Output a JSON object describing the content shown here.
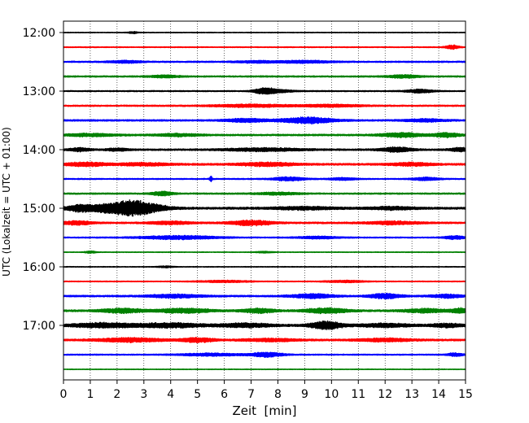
{
  "chart_data": {
    "type": "line",
    "title": "",
    "xlabel": "Zeit  [min]",
    "ylabel": "UTC (Lokalzeit = UTC + 01:00)",
    "xlim": [
      0,
      15
    ],
    "x_ticks": [
      0,
      1,
      2,
      3,
      4,
      5,
      6,
      7,
      8,
      9,
      10,
      11,
      12,
      13,
      14,
      15
    ],
    "vertical_grid": "dotted, each minute",
    "y_ticks": [
      {
        "label": "12:00",
        "trace_index": 0
      },
      {
        "label": "13:00",
        "trace_index": 4
      },
      {
        "label": "14:00",
        "trace_index": 8
      },
      {
        "label": "15:00",
        "trace_index": 12
      },
      {
        "label": "16:00",
        "trace_index": 16
      },
      {
        "label": "17:00",
        "trace_index": 20
      }
    ],
    "trace_interval_minutes": 15,
    "colors": [
      "#000000",
      "#ff0000",
      "#0000ff",
      "#008000"
    ],
    "traces": [
      {
        "start": "12:00",
        "color": "#000000",
        "noise": 0.3,
        "events": [
          {
            "t": 2.6,
            "amp": 1.2,
            "dur": 0.2
          }
        ]
      },
      {
        "start": "12:15",
        "color": "#ff0000",
        "noise": 0.4,
        "events": [
          {
            "t": 14.5,
            "amp": 2.6,
            "dur": 0.25
          }
        ]
      },
      {
        "start": "12:30",
        "color": "#0000ff",
        "noise": 0.6,
        "events": [
          {
            "t": 2.3,
            "amp": 1.4,
            "dur": 0.6
          },
          {
            "t": 7.2,
            "amp": 1.2,
            "dur": 0.8
          },
          {
            "t": 9.0,
            "amp": 1.4,
            "dur": 1.0
          }
        ]
      },
      {
        "start": "12:45",
        "color": "#008000",
        "noise": 0.6,
        "events": [
          {
            "t": 3.8,
            "amp": 1.4,
            "dur": 0.6
          },
          {
            "t": 12.7,
            "amp": 1.8,
            "dur": 0.6
          }
        ]
      },
      {
        "start": "13:00",
        "color": "#000000",
        "noise": 0.5,
        "events": [
          {
            "t": 7.5,
            "amp": 3.2,
            "dur": 0.4
          },
          {
            "t": 8.0,
            "amp": 1.5,
            "dur": 0.6
          },
          {
            "t": 13.3,
            "amp": 2.2,
            "dur": 0.5
          }
        ]
      },
      {
        "start": "13:15",
        "color": "#ff0000",
        "noise": 0.6,
        "events": [
          {
            "t": 7.0,
            "amp": 1.6,
            "dur": 1.5
          },
          {
            "t": 10.0,
            "amp": 1.4,
            "dur": 1.2
          }
        ]
      },
      {
        "start": "13:30",
        "color": "#0000ff",
        "noise": 0.7,
        "events": [
          {
            "t": 6.8,
            "amp": 2.0,
            "dur": 0.8
          },
          {
            "t": 9.1,
            "amp": 3.6,
            "dur": 1.0
          },
          {
            "t": 13.5,
            "amp": 1.6,
            "dur": 0.8
          }
        ]
      },
      {
        "start": "13:45",
        "color": "#008000",
        "noise": 0.7,
        "events": [
          {
            "t": 1.0,
            "amp": 1.6,
            "dur": 1.0
          },
          {
            "t": 4.3,
            "amp": 1.6,
            "dur": 0.8
          },
          {
            "t": 12.6,
            "amp": 2.6,
            "dur": 0.8
          },
          {
            "t": 14.3,
            "amp": 2.6,
            "dur": 0.5
          }
        ]
      },
      {
        "start": "14:00",
        "color": "#000000",
        "noise": 0.7,
        "events": [
          {
            "t": 0.6,
            "amp": 2.0,
            "dur": 0.4
          },
          {
            "t": 2.0,
            "amp": 1.6,
            "dur": 0.4
          },
          {
            "t": 7.5,
            "amp": 1.8,
            "dur": 1.5
          },
          {
            "t": 12.4,
            "amp": 2.8,
            "dur": 0.6
          },
          {
            "t": 14.8,
            "amp": 2.2,
            "dur": 0.4
          }
        ]
      },
      {
        "start": "14:15",
        "color": "#ff0000",
        "noise": 0.8,
        "events": [
          {
            "t": 0.8,
            "amp": 2.2,
            "dur": 0.8
          },
          {
            "t": 3.0,
            "amp": 1.6,
            "dur": 1.0
          },
          {
            "t": 7.6,
            "amp": 2.2,
            "dur": 1.0
          },
          {
            "t": 13.0,
            "amp": 1.8,
            "dur": 0.8
          }
        ]
      },
      {
        "start": "14:30",
        "color": "#0000ff",
        "noise": 0.5,
        "events": [
          {
            "t": 5.5,
            "amp": 3.6,
            "dur": 0.05
          },
          {
            "t": 8.4,
            "amp": 2.4,
            "dur": 0.6
          },
          {
            "t": 10.4,
            "amp": 1.4,
            "dur": 0.5
          },
          {
            "t": 13.5,
            "amp": 1.8,
            "dur": 0.5
          }
        ]
      },
      {
        "start": "14:45",
        "color": "#008000",
        "noise": 0.6,
        "events": [
          {
            "t": 3.7,
            "amp": 2.6,
            "dur": 0.4
          },
          {
            "t": 8.0,
            "amp": 1.4,
            "dur": 0.8
          }
        ]
      },
      {
        "start": "15:00",
        "color": "#000000",
        "noise": 0.9,
        "events": [
          {
            "t": 0.6,
            "amp": 4.0,
            "dur": 0.5
          },
          {
            "t": 1.6,
            "amp": 4.5,
            "dur": 0.6
          },
          {
            "t": 2.5,
            "amp": 8.5,
            "dur": 0.6
          },
          {
            "t": 3.3,
            "amp": 4.0,
            "dur": 0.7
          },
          {
            "t": 9.0,
            "amp": 1.6,
            "dur": 1.2
          },
          {
            "t": 12.3,
            "amp": 1.6,
            "dur": 0.8
          }
        ]
      },
      {
        "start": "15:15",
        "color": "#ff0000",
        "noise": 0.7,
        "events": [
          {
            "t": 0.5,
            "amp": 2.2,
            "dur": 0.6
          },
          {
            "t": 4.0,
            "amp": 1.8,
            "dur": 0.8
          },
          {
            "t": 7.0,
            "amp": 3.0,
            "dur": 0.8
          },
          {
            "t": 12.3,
            "amp": 1.8,
            "dur": 1.0
          }
        ]
      },
      {
        "start": "15:30",
        "color": "#0000ff",
        "noise": 0.5,
        "events": [
          {
            "t": 4.3,
            "amp": 2.2,
            "dur": 1.5
          },
          {
            "t": 9.5,
            "amp": 1.4,
            "dur": 0.8
          },
          {
            "t": 14.6,
            "amp": 2.0,
            "dur": 0.4
          }
        ]
      },
      {
        "start": "15:45",
        "color": "#008000",
        "noise": 0.3,
        "events": [
          {
            "t": 1.0,
            "amp": 1.4,
            "dur": 0.2
          },
          {
            "t": 7.5,
            "amp": 1.0,
            "dur": 0.3
          }
        ]
      },
      {
        "start": "16:00",
        "color": "#000000",
        "noise": 0.3,
        "events": [
          {
            "t": 3.8,
            "amp": 1.0,
            "dur": 0.3
          }
        ]
      },
      {
        "start": "16:15",
        "color": "#ff0000",
        "noise": 0.4,
        "events": [
          {
            "t": 6.0,
            "amp": 1.2,
            "dur": 1.0
          },
          {
            "t": 10.5,
            "amp": 1.2,
            "dur": 0.8
          }
        ]
      },
      {
        "start": "16:30",
        "color": "#0000ff",
        "noise": 0.7,
        "events": [
          {
            "t": 4.2,
            "amp": 2.0,
            "dur": 1.0
          },
          {
            "t": 9.3,
            "amp": 2.6,
            "dur": 0.8
          },
          {
            "t": 12.0,
            "amp": 3.0,
            "dur": 0.6
          },
          {
            "t": 14.3,
            "amp": 2.0,
            "dur": 0.6
          }
        ]
      },
      {
        "start": "16:45",
        "color": "#008000",
        "noise": 0.8,
        "events": [
          {
            "t": 2.2,
            "amp": 2.6,
            "dur": 0.8
          },
          {
            "t": 4.5,
            "amp": 2.6,
            "dur": 1.0
          },
          {
            "t": 7.3,
            "amp": 2.6,
            "dur": 0.6
          },
          {
            "t": 9.8,
            "amp": 3.0,
            "dur": 0.8
          },
          {
            "t": 13.5,
            "amp": 2.2,
            "dur": 0.8
          },
          {
            "t": 14.8,
            "amp": 2.8,
            "dur": 0.3
          }
        ]
      },
      {
        "start": "17:00",
        "color": "#000000",
        "noise": 0.9,
        "events": [
          {
            "t": 1.5,
            "amp": 2.6,
            "dur": 1.2
          },
          {
            "t": 4.0,
            "amp": 2.6,
            "dur": 1.2
          },
          {
            "t": 6.8,
            "amp": 2.2,
            "dur": 1.0
          },
          {
            "t": 9.8,
            "amp": 4.6,
            "dur": 0.6
          },
          {
            "t": 12.0,
            "amp": 2.0,
            "dur": 1.0
          },
          {
            "t": 14.3,
            "amp": 2.0,
            "dur": 0.6
          }
        ]
      },
      {
        "start": "17:15",
        "color": "#ff0000",
        "noise": 0.8,
        "events": [
          {
            "t": 2.5,
            "amp": 2.4,
            "dur": 1.2
          },
          {
            "t": 5.0,
            "amp": 2.6,
            "dur": 0.6
          },
          {
            "t": 7.7,
            "amp": 1.6,
            "dur": 1.0
          },
          {
            "t": 12.0,
            "amp": 1.8,
            "dur": 1.0
          }
        ]
      },
      {
        "start": "17:30",
        "color": "#0000ff",
        "noise": 0.5,
        "events": [
          {
            "t": 5.5,
            "amp": 1.6,
            "dur": 1.2
          },
          {
            "t": 7.6,
            "amp": 2.8,
            "dur": 0.6
          },
          {
            "t": 14.6,
            "amp": 2.0,
            "dur": 0.3
          }
        ]
      },
      {
        "start": "17:45",
        "color": "#008000",
        "noise": 0.3,
        "events": []
      }
    ]
  }
}
